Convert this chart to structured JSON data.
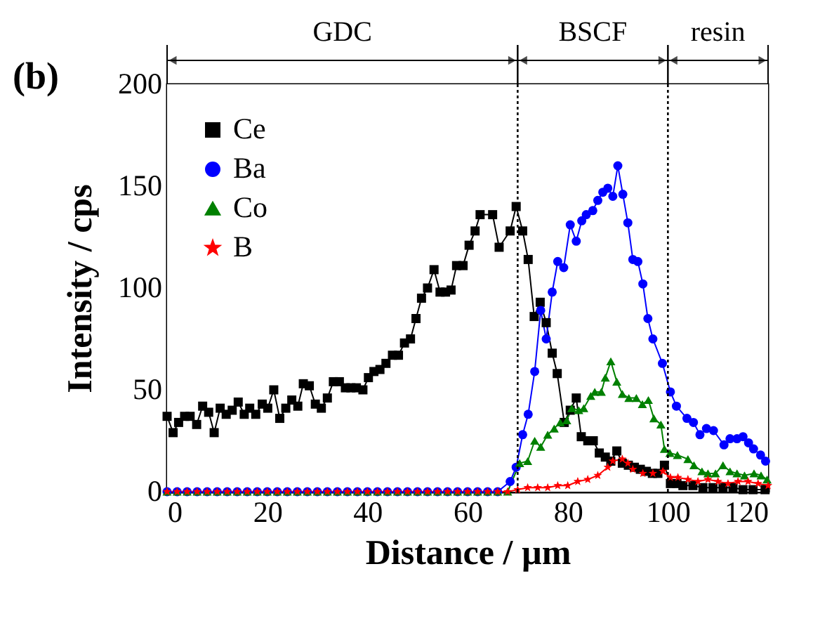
{
  "chart_data": {
    "type": "line",
    "xlabel": "Distance / µm",
    "ylabel": "Intensity / cps",
    "xlim": [
      0,
      120
    ],
    "ylim": [
      0,
      200
    ],
    "xticks": [
      0,
      20,
      40,
      60,
      80,
      100,
      120
    ],
    "yticks": [
      0,
      50,
      100,
      150,
      200
    ],
    "grid": false,
    "legend": "top left",
    "line_style": "solid",
    "series": [
      {
        "name": "Ce",
        "color": "#000000",
        "marker": "square",
        "x": [
          0,
          1.2,
          2.3,
          3.5,
          4.6,
          5.9,
          7.1,
          8.3,
          9.4,
          10.6,
          11.8,
          13,
          14.2,
          15.4,
          16.5,
          17.7,
          19,
          20.1,
          21.3,
          22.5,
          23.7,
          24.9,
          26.1,
          27.2,
          28.4,
          29.6,
          30.8,
          32,
          33.2,
          34.4,
          35.6,
          36.7,
          37.8,
          39.1,
          40.2,
          41.3,
          42.5,
          43.7,
          45,
          46.2,
          47.4,
          48.6,
          49.7,
          50.8,
          52,
          53.3,
          54.5,
          55.6,
          56.7,
          57.8,
          59.1,
          60.3,
          61.5,
          62.5,
          65,
          66.3,
          68.5,
          69.7,
          71,
          72.1,
          73.3,
          74.5,
          75.7,
          76.9,
          77.9,
          79.3,
          80.5,
          81.7,
          82.7,
          84,
          85.1,
          86.3,
          87.5,
          88.6,
          89.8,
          90.9,
          92.1,
          93.3,
          94.5,
          95.7,
          96.9,
          98,
          99.3,
          100.5,
          101.8,
          103,
          105,
          107,
          109,
          111,
          113,
          115,
          117,
          119.4
        ],
        "values": [
          37,
          29,
          34,
          37,
          37,
          33,
          42,
          39,
          29,
          41,
          38,
          40,
          44,
          38,
          41,
          38,
          43,
          41,
          50,
          36,
          41,
          45,
          42,
          53,
          52,
          43,
          41,
          46,
          54,
          54,
          51,
          51,
          51,
          50,
          56,
          59,
          60,
          63,
          67,
          67,
          73,
          75,
          85,
          95,
          100,
          109,
          98,
          98,
          99,
          111,
          111,
          121,
          128,
          136,
          136,
          120,
          128,
          140,
          128,
          114,
          86,
          93,
          83,
          68,
          58,
          34,
          40,
          46,
          27,
          25,
          25,
          19,
          17,
          15,
          20,
          14,
          13,
          12,
          11,
          10,
          9,
          9,
          13,
          4,
          4,
          3,
          3,
          2,
          2,
          2,
          2,
          1,
          1,
          1
        ]
      },
      {
        "name": "Ba",
        "color": "#0000ff",
        "marker": "circle",
        "x": [
          0,
          2,
          4,
          6,
          8,
          10,
          12,
          14,
          16,
          18,
          20,
          22,
          24,
          26,
          28,
          30,
          32,
          34,
          36,
          38,
          40,
          42,
          44,
          46,
          48,
          50,
          52,
          54,
          56,
          58,
          60,
          62,
          64,
          66,
          68.5,
          69.7,
          71,
          72.1,
          73.4,
          74.6,
          75.7,
          76.9,
          78,
          79.2,
          80.5,
          81.7,
          82.8,
          83.7,
          85,
          86,
          87,
          88,
          89,
          90,
          91,
          92,
          93,
          94,
          95,
          96,
          97,
          98.9,
          100.5,
          101.7,
          103.8,
          105.1,
          106.4,
          107.7,
          109.1,
          111.2,
          112.4,
          113.8,
          115,
          116.1,
          117.1,
          118.5,
          119.5
        ],
        "values": [
          0,
          0,
          0,
          0,
          0,
          0,
          0,
          0,
          0,
          0,
          0,
          0,
          0,
          0,
          0,
          0,
          0,
          0,
          0,
          0,
          0,
          0,
          0,
          0,
          0,
          0,
          0,
          0,
          0,
          0,
          0,
          0,
          0,
          0,
          5,
          12,
          28,
          38,
          59,
          89,
          75,
          98,
          113,
          110,
          131,
          123,
          133,
          136,
          138,
          143,
          147,
          149,
          145,
          160,
          146,
          132,
          114,
          113,
          102,
          85,
          75,
          63,
          49,
          42,
          36,
          34,
          28,
          31,
          30,
          23,
          26,
          26,
          27,
          24,
          21,
          18,
          15
        ]
      },
      {
        "name": "Co",
        "color": "#008000",
        "marker": "triangle",
        "x": [
          0,
          2,
          4,
          6,
          8,
          10,
          12,
          14,
          16,
          18,
          20,
          22,
          24,
          26,
          28,
          30,
          32,
          34,
          36,
          38,
          40,
          42,
          44,
          46,
          48,
          50,
          52,
          54,
          56,
          58,
          60,
          62,
          64,
          66,
          68,
          70.4,
          72,
          73.4,
          74.6,
          76,
          77.3,
          78.5,
          79.8,
          80.8,
          82.2,
          83.2,
          84.6,
          85.4,
          86.7,
          87.5,
          88.6,
          89.8,
          90.9,
          92.2,
          93.7,
          94.9,
          96.1,
          97.2,
          98.6,
          99.3,
          100.4,
          101.9,
          104,
          105.2,
          106.8,
          108,
          109.5,
          111,
          112.4,
          113.8,
          115.3,
          117.2,
          118.6,
          119.8
        ],
        "values": [
          0,
          0,
          0,
          0,
          0,
          0,
          0,
          0,
          0,
          0,
          0,
          0,
          0,
          0,
          0,
          0,
          0,
          0,
          0,
          0,
          0,
          0,
          0,
          0,
          0,
          0,
          0,
          0,
          0,
          0,
          0,
          0,
          0,
          0,
          0,
          14,
          15,
          25,
          22,
          28,
          31,
          34,
          35,
          41,
          40,
          41,
          47,
          49,
          49,
          56,
          64,
          54,
          48,
          46,
          46,
          43,
          45,
          36,
          33,
          21,
          19,
          18,
          16,
          13,
          10,
          9,
          9,
          13,
          10,
          9,
          8,
          9,
          8,
          6
        ]
      },
      {
        "name": "B",
        "color": "#ff0000",
        "marker": "star",
        "x": [
          0,
          2,
          4,
          6,
          8,
          10,
          12,
          14,
          16,
          18,
          20,
          22,
          24,
          26,
          28,
          30,
          32,
          34,
          36,
          38,
          40,
          42,
          44,
          46,
          48,
          50,
          52,
          54,
          56,
          58,
          60,
          62,
          64,
          66,
          68,
          70,
          72,
          74,
          76,
          78,
          80,
          82,
          84,
          86,
          88,
          89,
          90.9,
          92,
          93,
          95,
          97,
          99,
          100.5,
          102,
          104,
          106,
          108,
          110,
          112,
          114,
          116,
          118,
          120
        ],
        "values": [
          0,
          0,
          0,
          0,
          0,
          0,
          0,
          0,
          0,
          0,
          0,
          0,
          0,
          0,
          0,
          0,
          0,
          0,
          0,
          0,
          0,
          0,
          0,
          0,
          0,
          0,
          0,
          0,
          0,
          0,
          0,
          0,
          0,
          0,
          0,
          1,
          2,
          2,
          2,
          3,
          3,
          5,
          6,
          8,
          12,
          15,
          16,
          14,
          11,
          9,
          9,
          10,
          7,
          7,
          6,
          5,
          6,
          5,
          4,
          5,
          5,
          4,
          3
        ]
      }
    ],
    "ref_lines": [
      {
        "axis": "x",
        "value": 70,
        "line_style": "dotted"
      },
      {
        "axis": "x",
        "value": 100,
        "line_style": "dotted"
      }
    ],
    "bands": [
      {
        "axis": "x",
        "from": 0,
        "to": 70,
        "label": "GDC",
        "color": "#ffffff"
      },
      {
        "axis": "x",
        "from": 70,
        "to": 100,
        "label": "BSCF",
        "color": "#ffffff"
      },
      {
        "axis": "x",
        "from": 100,
        "to": 120,
        "label": "resin",
        "color": "#ffffff"
      }
    ],
    "annotations": [
      "(b)"
    ]
  }
}
